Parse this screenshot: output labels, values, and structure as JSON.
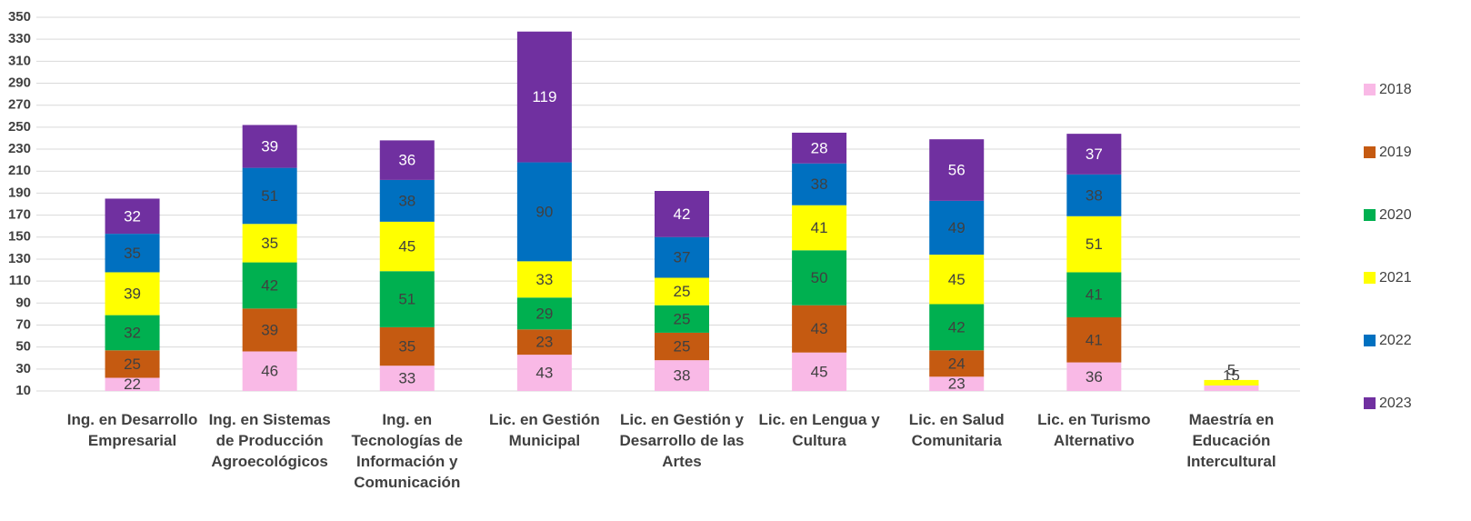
{
  "chart_data": {
    "type": "stacked_bar",
    "categories": [
      "Ing. en Desarrollo Empresarial",
      "Ing. en Sistemas de Producción Agroecológicos",
      "Ing. en Tecnologías de Información y Comunicación",
      "Lic. en Gestión Municipal",
      "Lic. en Gestión y Desarrollo de las Artes",
      "Lic. en Lengua y Cultura",
      "Lic. en Salud Comunitaria",
      "Lic. en Turismo Alternativo",
      "Maestría en Educación Intercultural"
    ],
    "series": [
      {
        "name": "2018",
        "color": "#f9b9e6",
        "values": [
          22,
          46,
          33,
          43,
          38,
          45,
          23,
          36,
          15
        ]
      },
      {
        "name": "2019",
        "color": "#c55a11",
        "values": [
          25,
          39,
          35,
          23,
          25,
          43,
          24,
          41,
          null
        ]
      },
      {
        "name": "2020",
        "color": "#00b050",
        "values": [
          32,
          42,
          51,
          29,
          25,
          50,
          42,
          41,
          null
        ]
      },
      {
        "name": "2021",
        "color": "#ffff00",
        "values": [
          39,
          35,
          45,
          33,
          25,
          41,
          45,
          51,
          5
        ]
      },
      {
        "name": "2022",
        "color": "#0070c0",
        "values": [
          35,
          51,
          38,
          90,
          37,
          38,
          49,
          38,
          null
        ]
      },
      {
        "name": "2023",
        "color": "#7030a0",
        "values": [
          32,
          39,
          36,
          119,
          42,
          28,
          56,
          37,
          null
        ]
      }
    ],
    "ylim": [
      10,
      350
    ],
    "yticks": [
      10,
      30,
      50,
      70,
      90,
      110,
      130,
      150,
      170,
      190,
      210,
      230,
      250,
      270,
      290,
      310,
      330,
      350
    ],
    "grid": true,
    "legend": "right"
  }
}
